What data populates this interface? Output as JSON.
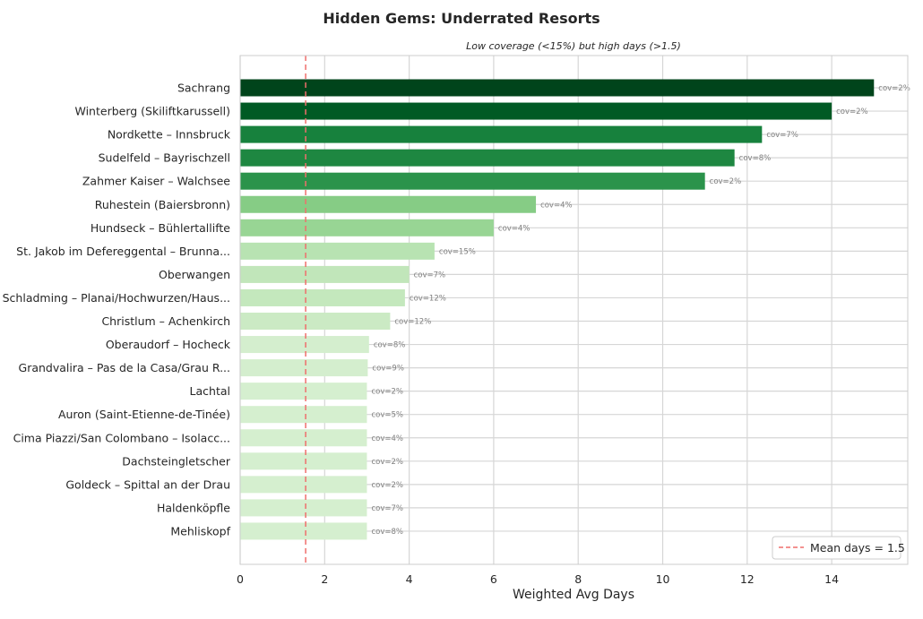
{
  "chart_data": {
    "type": "bar",
    "orientation": "horizontal",
    "title": "Hidden Gems: Underrated Resorts",
    "subtitle": "Low coverage (<15%) but high days (>1.5)",
    "xlabel": "Weighted Avg Days",
    "ylabel": "",
    "xlim": [
      0,
      15.8
    ],
    "xticks": [
      0,
      2,
      4,
      6,
      8,
      10,
      12,
      14
    ],
    "grid": true,
    "legend_position": "bottom-right",
    "reference_line": {
      "value": 1.55,
      "label": "Mean days = 1.5",
      "color": "#ef6f6c",
      "style": "dashed"
    },
    "categories": [
      "Sachrang",
      "Winterberg (Skiliftkarussell)",
      "Nordkette – Innsbruck",
      "Sudelfeld – Bayrischzell",
      "Zahmer Kaiser – Walchsee",
      "Ruhestein (Baiersbronn)",
      "Hundseck – Bühlertallifte",
      "St. Jakob im Defereggental – Brunna...",
      "Oberwangen",
      "Schladming – Planai/Hochwurzen/Haus...",
      "Christlum – Achenkirch",
      "Oberaudorf – Hocheck",
      "Grandvalira – Pas de la Casa/Grau R...",
      "Lachtal",
      "Auron (Saint-Etienne-de-Tinée)",
      "Cima Piazzi/San Colombano – Isolacc...",
      "Dachsteingletscher",
      "Goldeck – Spittal an der Drau",
      "Haldenköpfle",
      "Mehliskopf"
    ],
    "values": [
      15.0,
      14.0,
      12.35,
      11.7,
      11.0,
      7.0,
      6.0,
      4.6,
      4.0,
      3.9,
      3.55,
      3.05,
      3.02,
      3.0,
      3.0,
      3.0,
      3.0,
      3.0,
      3.0,
      3.0
    ],
    "bar_labels": [
      "cov=2%",
      "cov=2%",
      "cov=7%",
      "cov=8%",
      "cov=2%",
      "cov=4%",
      "cov=4%",
      "cov=15%",
      "cov=7%",
      "cov=12%",
      "cov=12%",
      "cov=8%",
      "cov=9%",
      "cov=2%",
      "cov=5%",
      "cov=4%",
      "cov=2%",
      "cov=2%",
      "cov=7%",
      "cov=8%"
    ],
    "colors": [
      "#00441b",
      "#005a24",
      "#17813d",
      "#1e8741",
      "#2b934b",
      "#86cc85",
      "#98d594",
      "#b8e3b2",
      "#c1e6ba",
      "#c4e8bd",
      "#cbeac4",
      "#d4eece",
      "#d4eece",
      "#d5efcf",
      "#d5efcf",
      "#d5efcf",
      "#d5efcf",
      "#d5efcf",
      "#d5efcf",
      "#d5efcf"
    ]
  }
}
